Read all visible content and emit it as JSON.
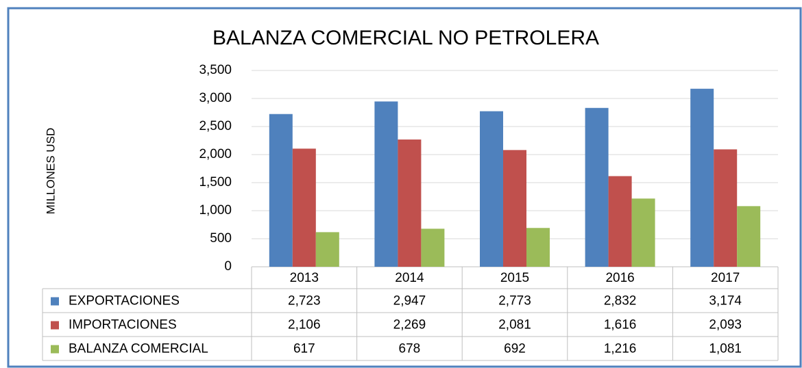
{
  "chart_data": {
    "type": "bar",
    "title": "BALANZA COMERCIAL NO PETROLERA",
    "y_label": "MILLONES USD",
    "categories": [
      "2013",
      "2014",
      "2015",
      "2016",
      "2017"
    ],
    "series": [
      {
        "name": "EXPORTACIONES",
        "color": "#4f81bd",
        "values": [
          2723,
          2947,
          2773,
          2832,
          3174
        ],
        "value_labels": [
          "2,723",
          "2,947",
          "2,773",
          "2,832",
          "3,174"
        ]
      },
      {
        "name": "IMPORTACIONES",
        "color": "#c0504d",
        "values": [
          2106,
          2269,
          2081,
          1616,
          2093
        ],
        "value_labels": [
          "2,106",
          "2,269",
          "2,081",
          "1,616",
          "2,093"
        ]
      },
      {
        "name": "BALANZA COMERCIAL",
        "color": "#9bbb59",
        "values": [
          617,
          678,
          692,
          1216,
          1081
        ],
        "value_labels": [
          "617",
          "678",
          "692",
          "1,216",
          "1,081"
        ]
      }
    ],
    "ylim": [
      0,
      3500
    ],
    "yticks": [
      0,
      500,
      {
        "value": 1000,
        "label": "1,000"
      },
      {
        "value": 1500,
        "label": "1,500"
      },
      {
        "value": 2000,
        "label": "2,000"
      },
      {
        "value": 2500,
        "label": "2,500"
      },
      {
        "value": 3000,
        "label": "3,000"
      },
      {
        "value": 3500,
        "label": "3,500"
      }
    ],
    "grid": true
  }
}
